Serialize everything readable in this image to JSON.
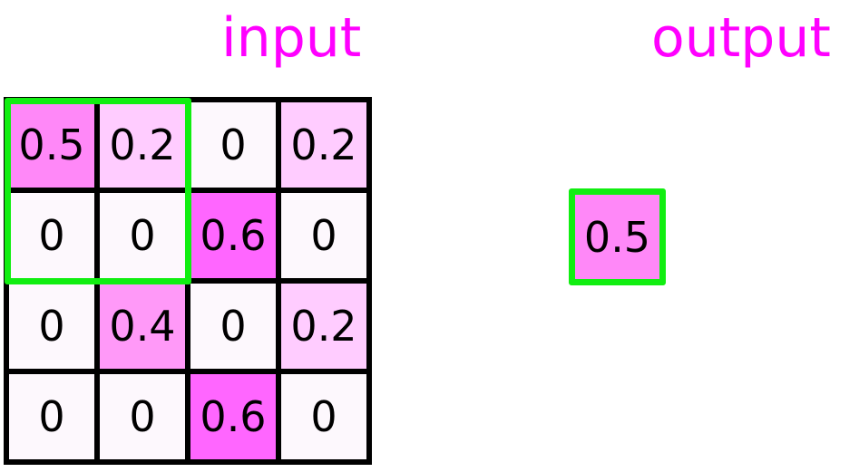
{
  "input_label": "input",
  "output_label": "output",
  "input_grid": [
    [
      "0.5",
      "0.2",
      "0",
      "0.2"
    ],
    [
      "0",
      "0",
      "0.6",
      "0"
    ],
    [
      "0",
      "0.4",
      "0",
      "0.2"
    ],
    [
      "0",
      "0",
      "0.6",
      "0"
    ]
  ],
  "output_value": "0.5",
  "colors": {
    "0": "#fdf8fd",
    "0.2": "#ffccff",
    "0.4": "#ff99f8",
    "0.5": "#ff88f8",
    "0.6": "#ff66ff",
    "title": "#ff00ff",
    "window": "#11ee11",
    "grid_lines": "#000000"
  }
}
